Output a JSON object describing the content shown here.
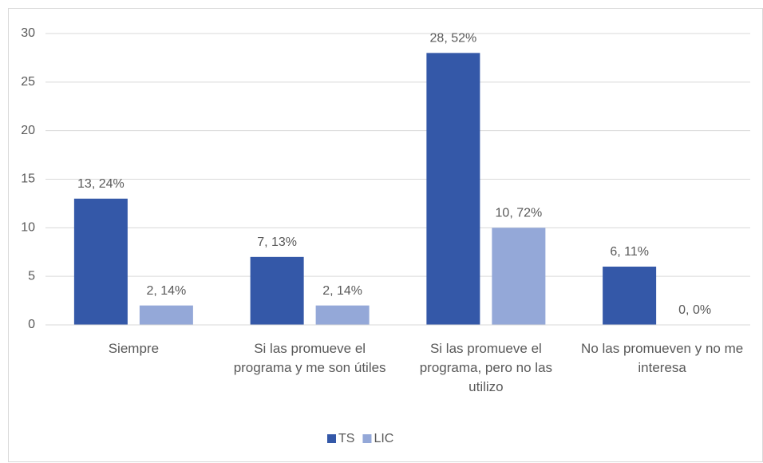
{
  "chart_data": {
    "type": "bar",
    "categories": [
      "Siempre",
      "Si las promueve el programa y me son útiles",
      "Si las promueve el programa, pero no las utilizo",
      "No las promueven y no me interesa"
    ],
    "series": [
      {
        "name": "TS",
        "color": "#3458a8",
        "values": [
          13,
          7,
          28,
          6
        ],
        "value_labels": [
          "13, 24%",
          "7, 13%",
          "28, 52%",
          "6, 11%"
        ]
      },
      {
        "name": "LIC",
        "color": "#94a8d8",
        "values": [
          2,
          2,
          10,
          0
        ],
        "value_labels": [
          "2, 14%",
          "2, 14%",
          "10, 72%",
          "0, 0%"
        ]
      }
    ],
    "ylim": [
      0,
      30
    ],
    "yticks": [
      0,
      5,
      10,
      15,
      20,
      25,
      30
    ],
    "grid": true,
    "legend": "bottom"
  }
}
